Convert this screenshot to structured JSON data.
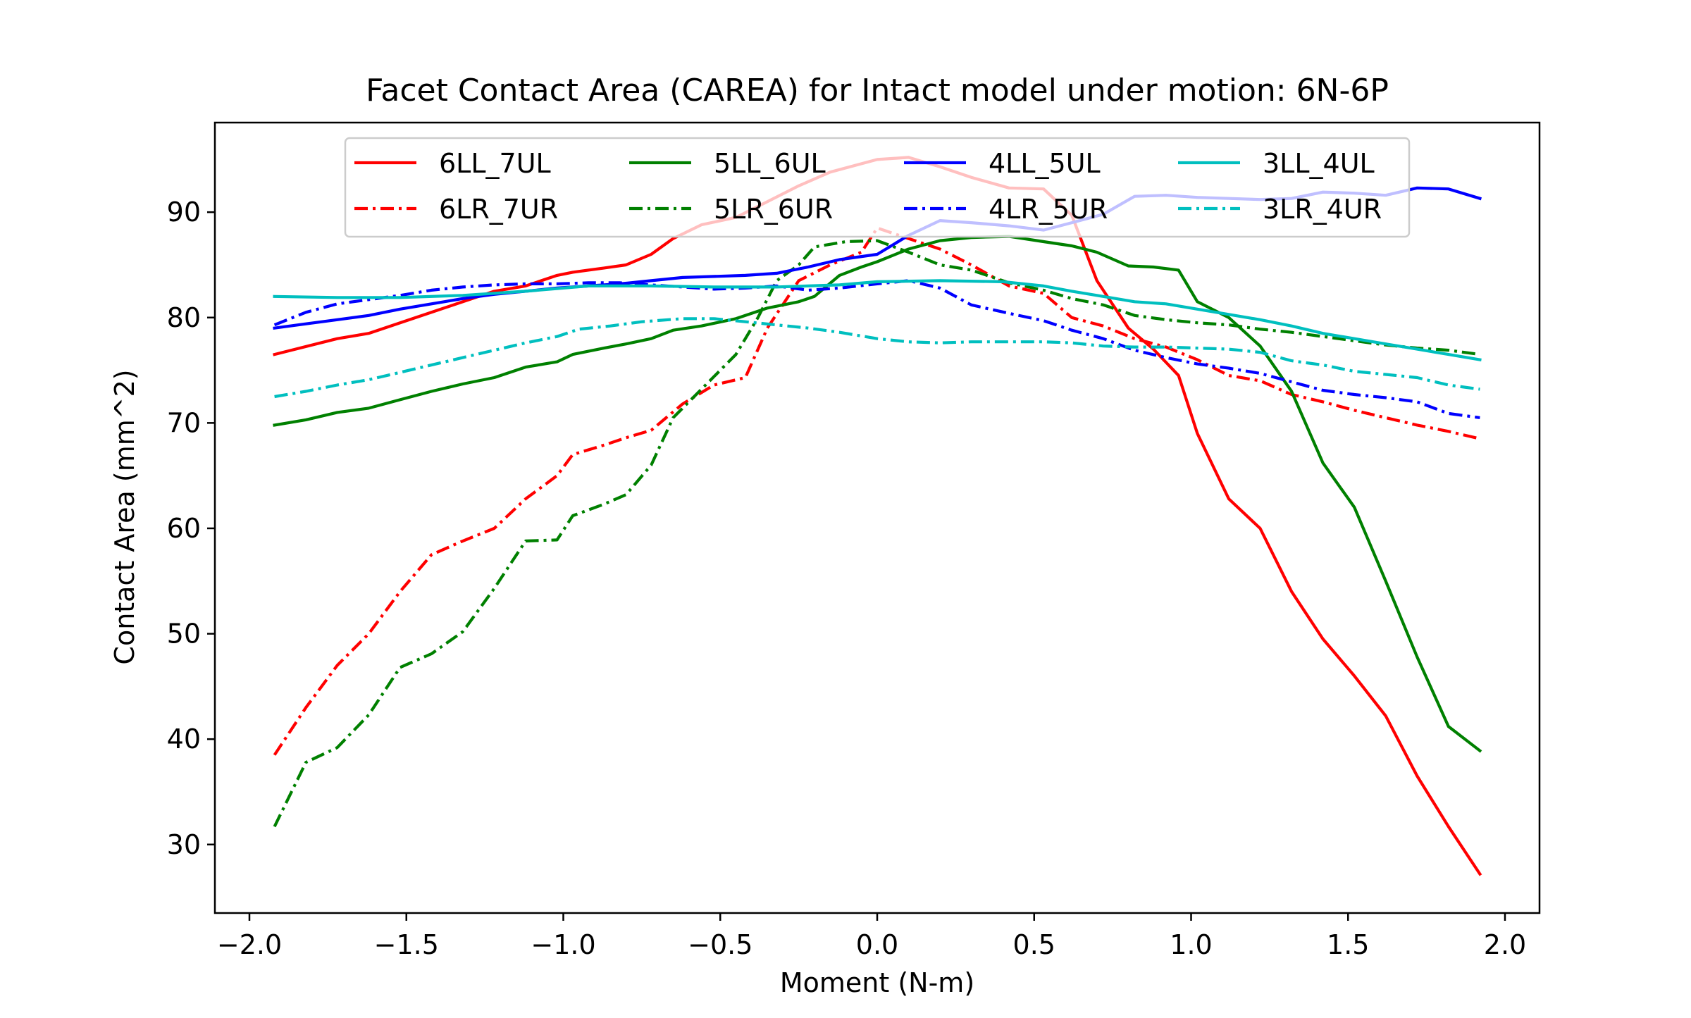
{
  "chart_data": {
    "type": "line",
    "title": "Facet Contact Area (CAREA) for Intact model under motion: 6N-6P",
    "xlabel": "Moment (N-m)",
    "ylabel": "Contact Area (mm^2)",
    "xlim": [
      -2.11,
      2.11
    ],
    "ylim": [
      23.5,
      98.5
    ],
    "xticks": [
      -2.0,
      -1.5,
      -1.0,
      -0.5,
      0.0,
      0.5,
      1.0,
      1.5,
      2.0
    ],
    "xtick_labels": [
      "−2.0",
      "−1.5",
      "−1.0",
      "−0.5",
      "0.0",
      "0.5",
      "1.0",
      "1.5",
      "2.0"
    ],
    "yticks": [
      30,
      40,
      50,
      60,
      70,
      80,
      90
    ],
    "ytick_labels": [
      "30",
      "40",
      "50",
      "60",
      "70",
      "80",
      "90"
    ],
    "grid": false,
    "legend": {
      "placement": "upper-center",
      "columns": 4
    },
    "series": [
      {
        "name": "6LL_7UL",
        "color": "#ff0000",
        "dash": "solid",
        "x": [
          -1.92,
          -1.72,
          -1.62,
          -1.52,
          -1.42,
          -1.32,
          -1.22,
          -1.12,
          -1.02,
          -0.97,
          -0.87,
          -0.8,
          -0.72,
          -0.65,
          -0.56,
          -0.45,
          -0.35,
          -0.25,
          -0.15,
          0.0,
          0.1,
          0.2,
          0.3,
          0.42,
          0.53,
          0.62,
          0.7,
          0.8,
          0.88,
          0.96,
          1.02,
          1.12,
          1.22,
          1.32,
          1.42,
          1.52,
          1.62,
          1.72,
          1.82,
          1.92
        ],
        "y": [
          76.5,
          78.0,
          78.5,
          79.5,
          80.5,
          81.5,
          82.5,
          83.0,
          84.0,
          84.3,
          84.7,
          85.0,
          86.0,
          87.5,
          88.8,
          89.5,
          91.0,
          92.5,
          93.8,
          95.0,
          95.2,
          94.3,
          93.3,
          92.3,
          92.2,
          89.7,
          83.5,
          79.0,
          77.0,
          74.5,
          69.0,
          62.8,
          60.0,
          54.0,
          49.5,
          46.0,
          42.2,
          36.5,
          31.7,
          27.2
        ]
      },
      {
        "name": "6LR_7UR",
        "color": "#ff0000",
        "dash": "dashdot",
        "x": [
          -1.92,
          -1.82,
          -1.72,
          -1.62,
          -1.52,
          -1.42,
          -1.32,
          -1.22,
          -1.12,
          -1.02,
          -0.97,
          -0.87,
          -0.8,
          -0.72,
          -0.62,
          -0.52,
          -0.42,
          -0.35,
          -0.25,
          -0.15,
          -0.05,
          0.0,
          0.1,
          0.2,
          0.3,
          0.42,
          0.53,
          0.62,
          0.72,
          0.82,
          0.92,
          1.02,
          1.12,
          1.22,
          1.32,
          1.42,
          1.52,
          1.62,
          1.72,
          1.82,
          1.92
        ],
        "y": [
          38.5,
          43.0,
          47.0,
          50.0,
          54.0,
          57.5,
          58.8,
          60.0,
          62.8,
          65.0,
          67.0,
          67.9,
          68.6,
          69.3,
          71.8,
          73.6,
          74.3,
          79.0,
          83.5,
          85.0,
          86.2,
          88.5,
          87.5,
          86.5,
          85.0,
          83.0,
          82.3,
          80.0,
          79.2,
          78.0,
          77.2,
          76.0,
          74.5,
          74.0,
          72.7,
          72.0,
          71.2,
          70.5,
          69.8,
          69.2,
          68.5
        ]
      },
      {
        "name": "5LL_6UL",
        "color": "#008000",
        "dash": "solid",
        "x": [
          -1.92,
          -1.82,
          -1.72,
          -1.62,
          -1.52,
          -1.42,
          -1.32,
          -1.22,
          -1.12,
          -1.02,
          -0.97,
          -0.87,
          -0.8,
          -0.72,
          -0.65,
          -0.56,
          -0.45,
          -0.35,
          -0.25,
          -0.2,
          -0.12,
          -0.05,
          0.0,
          0.1,
          0.2,
          0.3,
          0.42,
          0.53,
          0.62,
          0.7,
          0.8,
          0.88,
          0.96,
          1.02,
          1.12,
          1.22,
          1.32,
          1.42,
          1.52,
          1.62,
          1.72,
          1.82,
          1.92
        ],
        "y": [
          69.8,
          70.3,
          71.0,
          71.4,
          72.2,
          73.0,
          73.7,
          74.3,
          75.3,
          75.8,
          76.5,
          77.1,
          77.5,
          78.0,
          78.8,
          79.2,
          79.9,
          80.9,
          81.5,
          82.0,
          84.0,
          84.8,
          85.3,
          86.5,
          87.3,
          87.6,
          87.7,
          87.2,
          86.8,
          86.2,
          84.9,
          84.8,
          84.5,
          81.5,
          80.0,
          77.3,
          73.0,
          66.2,
          62.0,
          55.0,
          47.8,
          41.2,
          38.9
        ]
      },
      {
        "name": "5LR_6UR",
        "color": "#008000",
        "dash": "dashdot",
        "x": [
          -1.92,
          -1.82,
          -1.72,
          -1.62,
          -1.52,
          -1.42,
          -1.32,
          -1.22,
          -1.12,
          -1.02,
          -0.97,
          -0.87,
          -0.8,
          -0.72,
          -0.65,
          -0.56,
          -0.45,
          -0.38,
          -0.32,
          -0.25,
          -0.2,
          -0.1,
          0.0,
          0.1,
          0.2,
          0.3,
          0.42,
          0.53,
          0.62,
          0.72,
          0.82,
          0.92,
          1.02,
          1.12,
          1.22,
          1.32,
          1.42,
          1.52,
          1.62,
          1.72,
          1.82,
          1.92
        ],
        "y": [
          31.7,
          37.8,
          39.2,
          42.3,
          46.8,
          48.1,
          50.2,
          54.3,
          58.8,
          58.9,
          61.2,
          62.3,
          63.2,
          66.0,
          70.5,
          73.2,
          76.5,
          80.0,
          83.5,
          85.0,
          86.7,
          87.2,
          87.3,
          86.2,
          85.0,
          84.5,
          83.3,
          82.6,
          81.8,
          81.2,
          80.2,
          79.8,
          79.5,
          79.3,
          78.9,
          78.6,
          78.2,
          77.8,
          77.4,
          77.1,
          76.9,
          76.5
        ]
      },
      {
        "name": "4LL_5UL",
        "color": "#0000ff",
        "dash": "solid",
        "x": [
          -1.92,
          -1.82,
          -1.72,
          -1.62,
          -1.52,
          -1.42,
          -1.32,
          -1.22,
          -1.12,
          -1.02,
          -0.92,
          -0.82,
          -0.72,
          -0.62,
          -0.52,
          -0.42,
          -0.32,
          -0.22,
          -0.12,
          0.0,
          0.1,
          0.2,
          0.3,
          0.42,
          0.53,
          0.62,
          0.72,
          0.82,
          0.92,
          1.02,
          1.12,
          1.22,
          1.32,
          1.42,
          1.52,
          1.62,
          1.72,
          1.82,
          1.92
        ],
        "y": [
          79.0,
          79.4,
          79.8,
          80.2,
          80.8,
          81.3,
          81.8,
          82.2,
          82.5,
          82.8,
          83.0,
          83.2,
          83.5,
          83.8,
          83.9,
          84.0,
          84.2,
          84.8,
          85.5,
          86.0,
          87.8,
          89.2,
          89.0,
          88.7,
          88.3,
          89.0,
          89.8,
          91.5,
          91.6,
          91.4,
          91.3,
          91.2,
          91.3,
          91.9,
          91.8,
          91.6,
          92.3,
          92.2,
          91.3
        ]
      },
      {
        "name": "4LR_5UR",
        "color": "#0000ff",
        "dash": "dashdot",
        "x": [
          -1.92,
          -1.82,
          -1.72,
          -1.62,
          -1.52,
          -1.42,
          -1.32,
          -1.22,
          -1.12,
          -1.02,
          -0.92,
          -0.82,
          -0.72,
          -0.62,
          -0.52,
          -0.42,
          -0.32,
          -0.22,
          -0.12,
          0.0,
          0.1,
          0.2,
          0.3,
          0.42,
          0.53,
          0.62,
          0.72,
          0.82,
          0.92,
          1.02,
          1.12,
          1.22,
          1.32,
          1.42,
          1.52,
          1.62,
          1.72,
          1.82,
          1.92
        ],
        "y": [
          79.3,
          80.5,
          81.3,
          81.7,
          82.1,
          82.6,
          82.9,
          83.1,
          83.2,
          83.2,
          83.3,
          83.3,
          83.1,
          82.9,
          82.7,
          82.8,
          83.0,
          82.6,
          82.8,
          83.2,
          83.5,
          82.8,
          81.2,
          80.4,
          79.7,
          78.8,
          78.0,
          76.9,
          76.2,
          75.6,
          75.2,
          74.7,
          73.9,
          73.1,
          72.7,
          72.4,
          72.0,
          70.9,
          70.5
        ]
      },
      {
        "name": "3LL_4UL",
        "color": "#00bfbf",
        "dash": "solid",
        "x": [
          -1.92,
          -1.72,
          -1.52,
          -1.32,
          -1.12,
          -0.92,
          -0.72,
          -0.52,
          -0.32,
          -0.12,
          0.0,
          0.2,
          0.4,
          0.53,
          0.62,
          0.72,
          0.82,
          0.92,
          1.02,
          1.12,
          1.22,
          1.32,
          1.42,
          1.52,
          1.62,
          1.72,
          1.82,
          1.92
        ],
        "y": [
          82.0,
          81.9,
          81.9,
          82.1,
          82.5,
          83.0,
          83.0,
          82.9,
          82.9,
          83.1,
          83.4,
          83.5,
          83.4,
          83.0,
          82.5,
          82.0,
          81.5,
          81.3,
          80.8,
          80.3,
          79.8,
          79.2,
          78.5,
          78.0,
          77.5,
          77.0,
          76.5,
          76.0
        ]
      },
      {
        "name": "3LR_4UR",
        "color": "#00bfbf",
        "dash": "dashdot",
        "x": [
          -1.92,
          -1.82,
          -1.72,
          -1.62,
          -1.52,
          -1.42,
          -1.32,
          -1.22,
          -1.12,
          -1.02,
          -0.95,
          -0.85,
          -0.75,
          -0.62,
          -0.52,
          -0.42,
          -0.32,
          -0.22,
          -0.12,
          0.0,
          0.1,
          0.2,
          0.3,
          0.42,
          0.53,
          0.62,
          0.72,
          0.82,
          0.92,
          1.02,
          1.12,
          1.22,
          1.32,
          1.42,
          1.52,
          1.62,
          1.72,
          1.82,
          1.92
        ],
        "y": [
          72.5,
          73.0,
          73.6,
          74.1,
          74.8,
          75.5,
          76.2,
          76.9,
          77.6,
          78.2,
          78.9,
          79.2,
          79.6,
          79.9,
          79.9,
          79.6,
          79.3,
          79.0,
          78.6,
          78.0,
          77.7,
          77.6,
          77.7,
          77.7,
          77.7,
          77.6,
          77.3,
          77.2,
          77.2,
          77.1,
          77.0,
          76.7,
          75.9,
          75.5,
          74.9,
          74.6,
          74.3,
          73.6,
          73.2
        ]
      }
    ]
  }
}
